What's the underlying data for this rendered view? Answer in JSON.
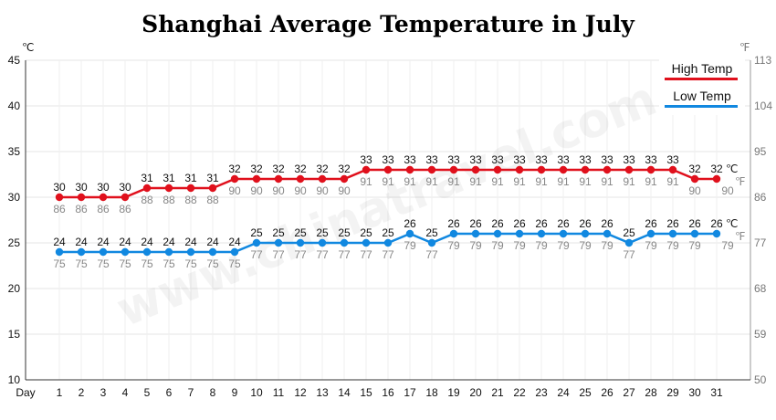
{
  "chart_data": {
    "type": "line",
    "title": "Shanghai Average Temperature in July",
    "x_axis_label": "Day",
    "y_left_unit": "℃",
    "y_right_unit": "℉",
    "y_left_range": [
      10,
      45
    ],
    "y_left_ticks": [
      "10",
      "15",
      "20",
      "25",
      "30",
      "35",
      "40",
      "45"
    ],
    "y_right_ticks": [
      "50",
      "59",
      "68",
      "77",
      "86",
      "95",
      "104",
      "113"
    ],
    "x": [
      1,
      2,
      3,
      4,
      5,
      6,
      7,
      8,
      9,
      10,
      11,
      12,
      13,
      14,
      15,
      16,
      17,
      18,
      19,
      20,
      21,
      22,
      23,
      24,
      25,
      26,
      27,
      28,
      29,
      30,
      31
    ],
    "x_tick_labels": [
      "1",
      "2",
      "3",
      "4",
      "5",
      "6",
      "7",
      "8",
      "9",
      "10",
      "11",
      "12",
      "13",
      "14",
      "15",
      "16",
      "17",
      "18",
      "19",
      "20",
      "21",
      "22",
      "23",
      "24",
      "25",
      "26",
      "27",
      "28",
      "29",
      "30",
      "31"
    ],
    "grid": true,
    "legend_position": "top-right",
    "end_unit_label_c": "℃",
    "end_unit_label_f": "℉",
    "series": [
      {
        "name": "High Temp",
        "color": "#e0101c",
        "values_c": [
          30,
          30,
          30,
          30,
          31,
          31,
          31,
          31,
          32,
          32,
          32,
          32,
          32,
          32,
          33,
          33,
          33,
          33,
          33,
          33,
          33,
          33,
          33,
          33,
          33,
          33,
          33,
          33,
          33,
          32,
          32
        ],
        "values_f": [
          "86",
          "86",
          "86",
          "86",
          "88",
          "88",
          "88",
          "88",
          "90",
          "90",
          "90",
          "90",
          "90",
          "90",
          "91",
          "91",
          "91",
          "91",
          "91",
          "91",
          "91",
          "91",
          "91",
          "91",
          "91",
          "91",
          "91",
          "91",
          "91",
          "90",
          "90"
        ]
      },
      {
        "name": "Low Temp",
        "color": "#1188e0",
        "values_c": [
          24,
          24,
          24,
          24,
          24,
          24,
          24,
          24,
          24,
          25,
          25,
          25,
          25,
          25,
          25,
          25,
          26,
          25,
          26,
          26,
          26,
          26,
          26,
          26,
          26,
          26,
          25,
          26,
          26,
          26,
          26
        ],
        "values_f": [
          "75",
          "75",
          "75",
          "75",
          "75",
          "75",
          "75",
          "75",
          "75",
          "77",
          "77",
          "77",
          "77",
          "77",
          "77",
          "77",
          "79",
          "77",
          "79",
          "79",
          "79",
          "79",
          "79",
          "79",
          "79",
          "79",
          "77",
          "79",
          "79",
          "79",
          "79"
        ]
      }
    ]
  },
  "watermark": "www.chinatravel.com"
}
